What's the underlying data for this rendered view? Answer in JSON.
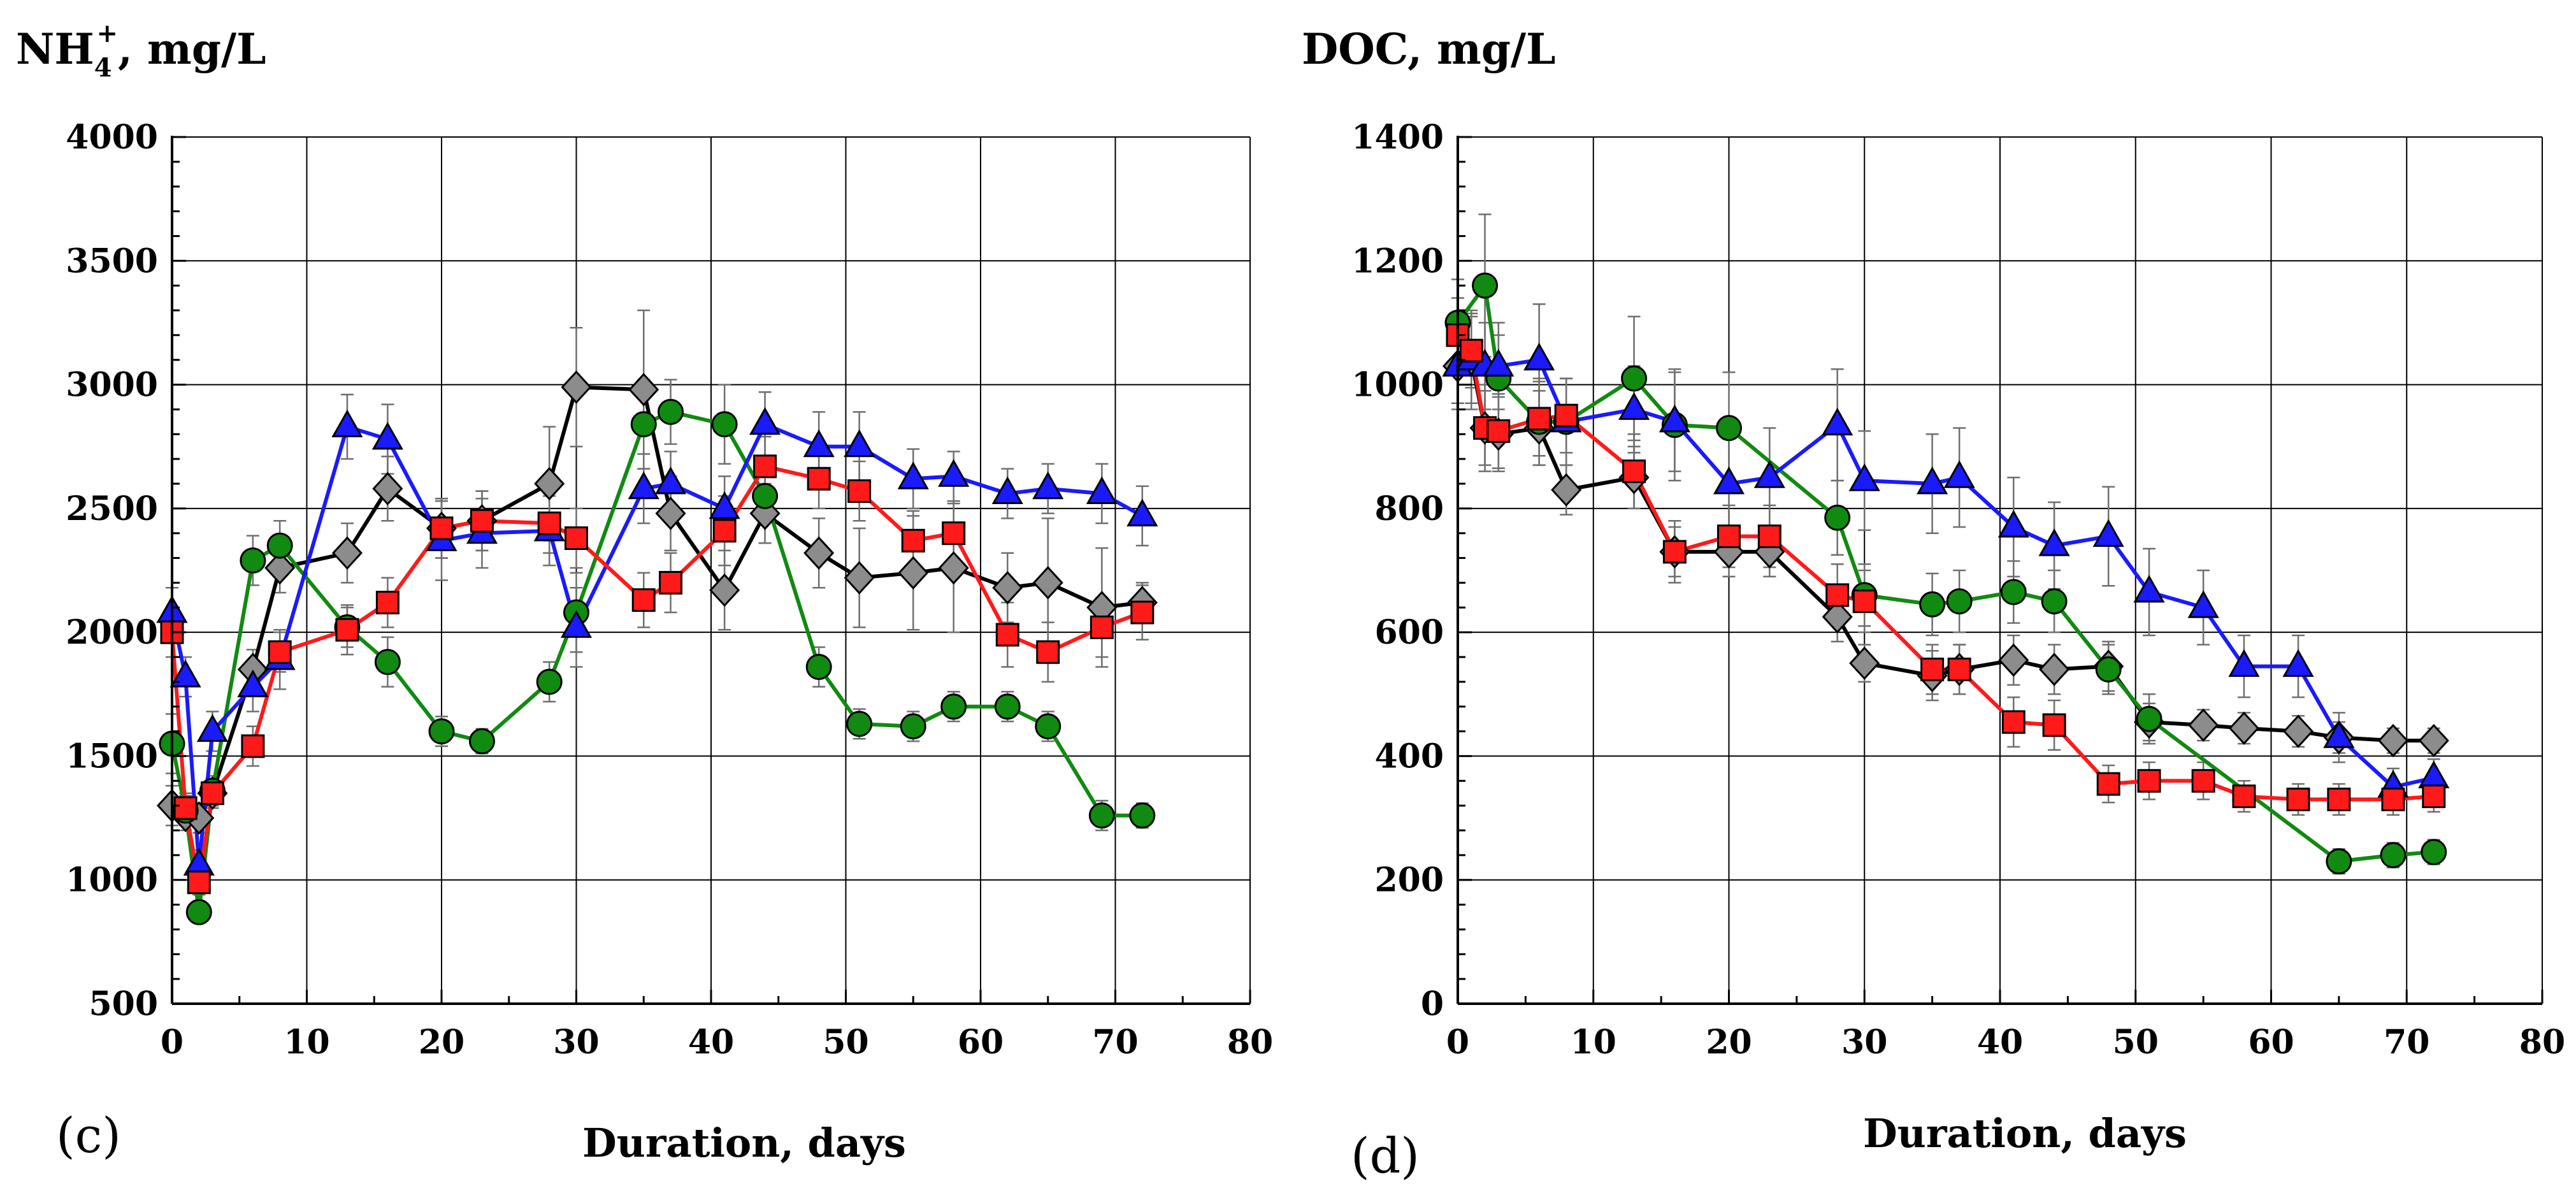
{
  "colors": {
    "black": "#000000",
    "gray": "#8c8c8c",
    "red": "#ff1a1a",
    "green": "#118a11",
    "blue": "#1a1aff"
  },
  "chart_data": [
    {
      "type": "line",
      "panel_label": "(c)",
      "title_base": "NH",
      "title_sub": "4",
      "title_sup": "+",
      "title_rest": ", mg/L",
      "xlabel": "Duration, days",
      "ylabel": "",
      "xlim": [
        0,
        80
      ],
      "ylim": [
        500,
        4000
      ],
      "xticks": [
        0,
        10,
        20,
        30,
        40,
        50,
        60,
        70,
        80
      ],
      "yticks": [
        500,
        1000,
        1500,
        2000,
        2500,
        3000,
        3500,
        4000
      ],
      "grid": true,
      "series": [
        {
          "name": "gray-diamond",
          "marker": "diamond",
          "color": "#8c8c8c",
          "line": "#000000",
          "x": [
            0,
            1,
            2,
            3,
            6,
            8,
            13,
            16,
            20,
            23,
            28,
            30,
            35,
            37,
            41,
            44,
            48,
            51,
            55,
            58,
            62,
            65,
            69,
            72
          ],
          "y": [
            1300,
            1260,
            1250,
            1350,
            1850,
            2260,
            2320,
            2580,
            2420,
            2450,
            2600,
            2990,
            2980,
            2480,
            2170,
            2480,
            2320,
            2220,
            2240,
            2260,
            2180,
            2200,
            2100,
            2120
          ],
          "err": [
            80,
            60,
            60,
            60,
            80,
            100,
            120,
            130,
            120,
            120,
            230,
            240,
            320,
            150,
            160,
            120,
            140,
            200,
            230,
            260,
            140,
            260,
            240,
            80
          ]
        },
        {
          "name": "green-circle",
          "marker": "circle",
          "color": "#118a11",
          "line": "#118a11",
          "x": [
            0,
            1,
            2,
            3,
            6,
            8,
            13,
            16,
            20,
            23,
            28,
            30,
            35,
            37,
            41,
            44,
            48,
            51,
            55,
            58,
            62,
            65,
            69,
            72
          ],
          "y": [
            1550,
            1280,
            870,
            1360,
            2290,
            2350,
            2020,
            1880,
            1600,
            1560,
            1800,
            2080,
            2840,
            2890,
            2840,
            2550,
            1860,
            1630,
            1620,
            1700,
            1700,
            1620,
            1260,
            1260
          ],
          "err": [
            120,
            60,
            40,
            60,
            100,
            100,
            80,
            100,
            60,
            50,
            80,
            160,
            180,
            130,
            160,
            100,
            80,
            60,
            60,
            60,
            60,
            60,
            60,
            50
          ]
        },
        {
          "name": "blue-triangle",
          "marker": "triangle",
          "color": "#1a1aff",
          "line": "#1a1aff",
          "x": [
            0,
            1,
            2,
            3,
            6,
            8,
            13,
            16,
            20,
            23,
            28,
            30,
            35,
            37,
            41,
            44,
            48,
            51,
            55,
            58,
            62,
            65,
            69,
            72
          ],
          "y": [
            2080,
            1820,
            1060,
            1600,
            1780,
            1890,
            2830,
            2780,
            2370,
            2400,
            2410,
            2020,
            2580,
            2600,
            2500,
            2840,
            2750,
            2750,
            2620,
            2630,
            2560,
            2580,
            2560,
            2470
          ],
          "err": [
            100,
            80,
            60,
            80,
            100,
            120,
            130,
            140,
            160,
            140,
            140,
            160,
            140,
            130,
            130,
            130,
            140,
            140,
            120,
            100,
            100,
            100,
            120,
            120
          ]
        },
        {
          "name": "red-square",
          "marker": "square",
          "color": "#ff1a1a",
          "line": "#ff1a1a",
          "x": [
            0,
            1,
            2,
            3,
            6,
            8,
            13,
            16,
            20,
            23,
            28,
            30,
            35,
            37,
            41,
            44,
            48,
            51,
            55,
            58,
            62,
            65,
            69,
            72
          ],
          "y": [
            2000,
            1290,
            990,
            1350,
            1540,
            1920,
            2010,
            2120,
            2420,
            2450,
            2440,
            2380,
            2130,
            2200,
            2410,
            2670,
            2620,
            2570,
            2370,
            2400,
            1990,
            1920,
            2020,
            2080
          ],
          "err": [
            100,
            60,
            50,
            60,
            80,
            80,
            100,
            100,
            120,
            120,
            120,
            120,
            110,
            120,
            140,
            120,
            120,
            120,
            120,
            130,
            130,
            120,
            120,
            110
          ]
        }
      ]
    },
    {
      "type": "line",
      "panel_label": "(d)",
      "title_base": "DOC, mg/L",
      "xlabel": "Duration, days",
      "ylabel": "",
      "xlim": [
        0,
        80
      ],
      "ylim": [
        0,
        1400
      ],
      "xticks": [
        0,
        10,
        20,
        30,
        40,
        50,
        60,
        70,
        80
      ],
      "yticks": [
        0,
        200,
        400,
        600,
        800,
        1000,
        1200,
        1400
      ],
      "grid": true,
      "series": [
        {
          "name": "gray-diamond",
          "marker": "diamond",
          "color": "#8c8c8c",
          "line": "#000000",
          "x": [
            0,
            1,
            2,
            3,
            6,
            8,
            13,
            16,
            20,
            23,
            28,
            30,
            35,
            37,
            41,
            44,
            48,
            51,
            55,
            58,
            62,
            65,
            69,
            72
          ],
          "y": [
            1030,
            1040,
            930,
            920,
            930,
            830,
            850,
            730,
            730,
            730,
            625,
            550,
            530,
            540,
            555,
            540,
            545,
            455,
            450,
            445,
            440,
            430,
            425,
            425
          ],
          "err": [
            60,
            80,
            70,
            60,
            60,
            40,
            50,
            40,
            40,
            40,
            40,
            30,
            40,
            40,
            40,
            40,
            40,
            30,
            25,
            25,
            25,
            25,
            20,
            20
          ]
        },
        {
          "name": "green-circle",
          "marker": "circle",
          "color": "#118a11",
          "line": "#118a11",
          "x": [
            0,
            2,
            3,
            6,
            8,
            13,
            16,
            20,
            28,
            30,
            35,
            37,
            41,
            44,
            48,
            51,
            65,
            69,
            72
          ],
          "y": [
            1100,
            1160,
            1010,
            940,
            940,
            1010,
            935,
            930,
            785,
            660,
            645,
            650,
            665,
            650,
            540,
            460,
            230,
            240,
            245
          ],
          "err": [
            70,
            115,
            70,
            70,
            70,
            100,
            90,
            90,
            60,
            50,
            50,
            50,
            50,
            50,
            40,
            40,
            20,
            20,
            20
          ]
        },
        {
          "name": "blue-triangle",
          "marker": "triangle",
          "color": "#1a1aff",
          "line": "#1a1aff",
          "x": [
            0,
            1,
            2,
            3,
            6,
            8,
            13,
            16,
            20,
            23,
            28,
            30,
            35,
            37,
            41,
            44,
            48,
            51,
            55,
            58,
            62,
            65,
            69,
            72
          ],
          "y": [
            1030,
            1040,
            1030,
            1030,
            1040,
            940,
            960,
            940,
            840,
            850,
            935,
            845,
            840,
            850,
            770,
            740,
            755,
            665,
            640,
            545,
            545,
            430,
            350,
            365
          ],
          "err": [
            70,
            70,
            70,
            70,
            90,
            70,
            70,
            80,
            80,
            80,
            90,
            80,
            80,
            80,
            80,
            70,
            80,
            70,
            60,
            50,
            50,
            40,
            30,
            30
          ]
        },
        {
          "name": "red-square",
          "marker": "square",
          "color": "#ff1a1a",
          "line": "#ff1a1a",
          "x": [
            0,
            1,
            2,
            3,
            6,
            8,
            13,
            16,
            20,
            23,
            28,
            30,
            35,
            37,
            41,
            44,
            48,
            51,
            55,
            58,
            62,
            65,
            69,
            72
          ],
          "y": [
            1080,
            1055,
            930,
            925,
            945,
            950,
            860,
            730,
            755,
            755,
            660,
            650,
            540,
            540,
            455,
            450,
            355,
            360,
            360,
            335,
            330,
            330,
            330,
            335
          ],
          "err": [
            60,
            60,
            60,
            60,
            60,
            60,
            60,
            50,
            50,
            50,
            50,
            50,
            40,
            40,
            40,
            40,
            30,
            30,
            30,
            25,
            25,
            25,
            25,
            25
          ]
        }
      ]
    }
  ]
}
